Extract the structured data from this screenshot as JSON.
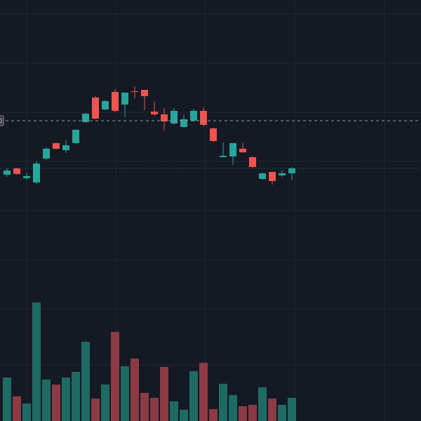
{
  "chart_data": {
    "type": "candlestick",
    "open": [
      351,
      360,
      346,
      340,
      374,
      396,
      386,
      396,
      426,
      461,
      444,
      469,
      451,
      470,
      472,
      441,
      437,
      424,
      419,
      428,
      442,
      417,
      376,
      377,
      388,
      376,
      345,
      355,
      350,
      353
    ],
    "high": [
      360,
      361,
      354,
      370,
      390,
      397,
      400,
      416,
      439,
      463,
      457,
      473,
      468,
      477,
      472,
      455,
      446,
      446,
      437,
      445,
      447,
      418,
      397,
      396,
      397,
      377,
      354,
      355,
      357,
      362
    ],
    "low": [
      348,
      351,
      344,
      338,
      372,
      387,
      382,
      395,
      425,
      430,
      443,
      440,
      433,
      460,
      443,
      435,
      414,
      422,
      418,
      426,
      420,
      398,
      376,
      365,
      382,
      361,
      344,
      337,
      348,
      343
    ],
    "close": [
      357,
      352,
      349,
      367,
      388,
      388,
      393,
      415,
      438,
      431,
      456,
      442,
      468,
      469,
      463,
      437,
      427,
      442,
      430,
      442,
      422,
      399,
      378,
      396,
      383,
      362,
      353,
      342,
      353,
      360
    ],
    "volume": [
      62,
      35,
      25,
      169,
      59,
      52,
      62,
      70,
      113,
      32,
      52,
      127,
      78,
      89,
      40,
      33,
      77,
      28,
      16,
      71,
      83,
      17,
      53,
      37,
      21,
      23,
      48,
      32,
      23,
      33
    ],
    "ylim": [
      0,
      600
    ],
    "up_color": "#26a69a",
    "down_color": "#ef5350",
    "volume_up_color": "#1e6b64",
    "volume_down_color": "#8c3a44",
    "crosshair_price": 428,
    "last_price": 360,
    "price_label": "0"
  }
}
